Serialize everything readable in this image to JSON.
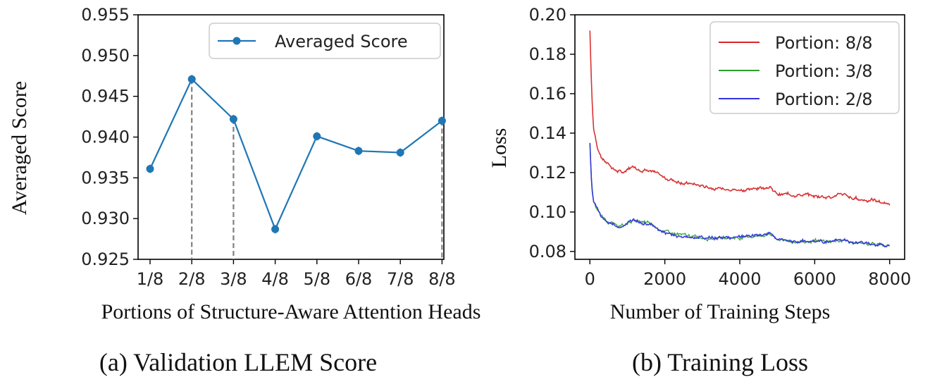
{
  "colors": {
    "score": "#1f77b4",
    "portion_8_8": "#d62728",
    "portion_3_8": "#2ca02c",
    "portion_2_8": "#3333dd",
    "dashed": "#808080"
  },
  "chart_data": [
    {
      "type": "line",
      "caption": "(a) Validation LLEM Score",
      "xlabel": "Portions of Structure-Aware Attention Heads",
      "ylabel": "Averaged Score",
      "categories": [
        "1/8",
        "2/8",
        "3/8",
        "4/8",
        "5/8",
        "6/8",
        "7/8",
        "8/8"
      ],
      "series": [
        {
          "name": "Averaged Score",
          "values": [
            0.9361,
            0.9471,
            0.9422,
            0.9287,
            0.9401,
            0.9383,
            0.9381,
            0.942
          ]
        }
      ],
      "ylim": [
        0.925,
        0.955
      ],
      "yticks": [
        "0.925",
        "0.930",
        "0.935",
        "0.940",
        "0.945",
        "0.950",
        "0.955"
      ],
      "dashed_drop_lines_at": [
        "2/8",
        "3/8",
        "8/8"
      ],
      "legend": "top-right",
      "grid": false
    },
    {
      "type": "line",
      "caption": "(b) Training Loss",
      "xlabel": "Number of Training Steps",
      "ylabel": "Loss",
      "xlim": [
        -400,
        8400
      ],
      "ylim": [
        0.076,
        0.2
      ],
      "xticks": [
        "0",
        "2000",
        "4000",
        "6000",
        "8000"
      ],
      "yticks": [
        "0.08",
        "0.10",
        "0.12",
        "0.14",
        "0.16",
        "0.18",
        "0.20"
      ],
      "series": [
        {
          "name": "Portion: 8/8",
          "x": [
            0,
            50,
            100,
            200,
            300,
            500,
            700,
            900,
            1000,
            1150,
            1300,
            1600,
            1800,
            2000,
            2500,
            3000,
            3500,
            4000,
            4500,
            4800,
            5000,
            5500,
            6000,
            6500,
            6800,
            7000,
            7500,
            8000
          ],
          "y": [
            0.192,
            0.16,
            0.142,
            0.133,
            0.128,
            0.124,
            0.121,
            0.12,
            0.121,
            0.123,
            0.122,
            0.121,
            0.119,
            0.117,
            0.115,
            0.113,
            0.112,
            0.111,
            0.112,
            0.113,
            0.109,
            0.109,
            0.108,
            0.108,
            0.109,
            0.107,
            0.106,
            0.104
          ]
        },
        {
          "name": "Portion: 3/8",
          "x": [
            0,
            50,
            100,
            200,
            300,
            500,
            700,
            900,
            1000,
            1150,
            1300,
            1600,
            1800,
            2000,
            2500,
            3000,
            3500,
            4000,
            4500,
            4800,
            5000,
            5500,
            6000,
            6500,
            6800,
            7000,
            7500,
            8000
          ],
          "y": [
            0.135,
            0.113,
            0.105,
            0.101,
            0.098,
            0.095,
            0.093,
            0.093,
            0.094,
            0.096,
            0.095,
            0.094,
            0.092,
            0.09,
            0.088,
            0.087,
            0.087,
            0.087,
            0.088,
            0.089,
            0.086,
            0.085,
            0.085,
            0.085,
            0.086,
            0.084,
            0.084,
            0.083
          ]
        },
        {
          "name": "Portion: 2/8",
          "x": [
            0,
            50,
            100,
            200,
            300,
            500,
            700,
            900,
            1000,
            1150,
            1300,
            1600,
            1800,
            2000,
            2500,
            3000,
            3500,
            4000,
            4500,
            4800,
            5000,
            5500,
            6000,
            6500,
            6800,
            7000,
            7500,
            8000
          ],
          "y": [
            0.135,
            0.112,
            0.105,
            0.101,
            0.098,
            0.095,
            0.093,
            0.093,
            0.094,
            0.096,
            0.095,
            0.094,
            0.092,
            0.09,
            0.087,
            0.087,
            0.087,
            0.087,
            0.088,
            0.089,
            0.086,
            0.085,
            0.085,
            0.085,
            0.086,
            0.084,
            0.084,
            0.083
          ]
        }
      ],
      "legend": "top-right",
      "grid": false
    }
  ]
}
